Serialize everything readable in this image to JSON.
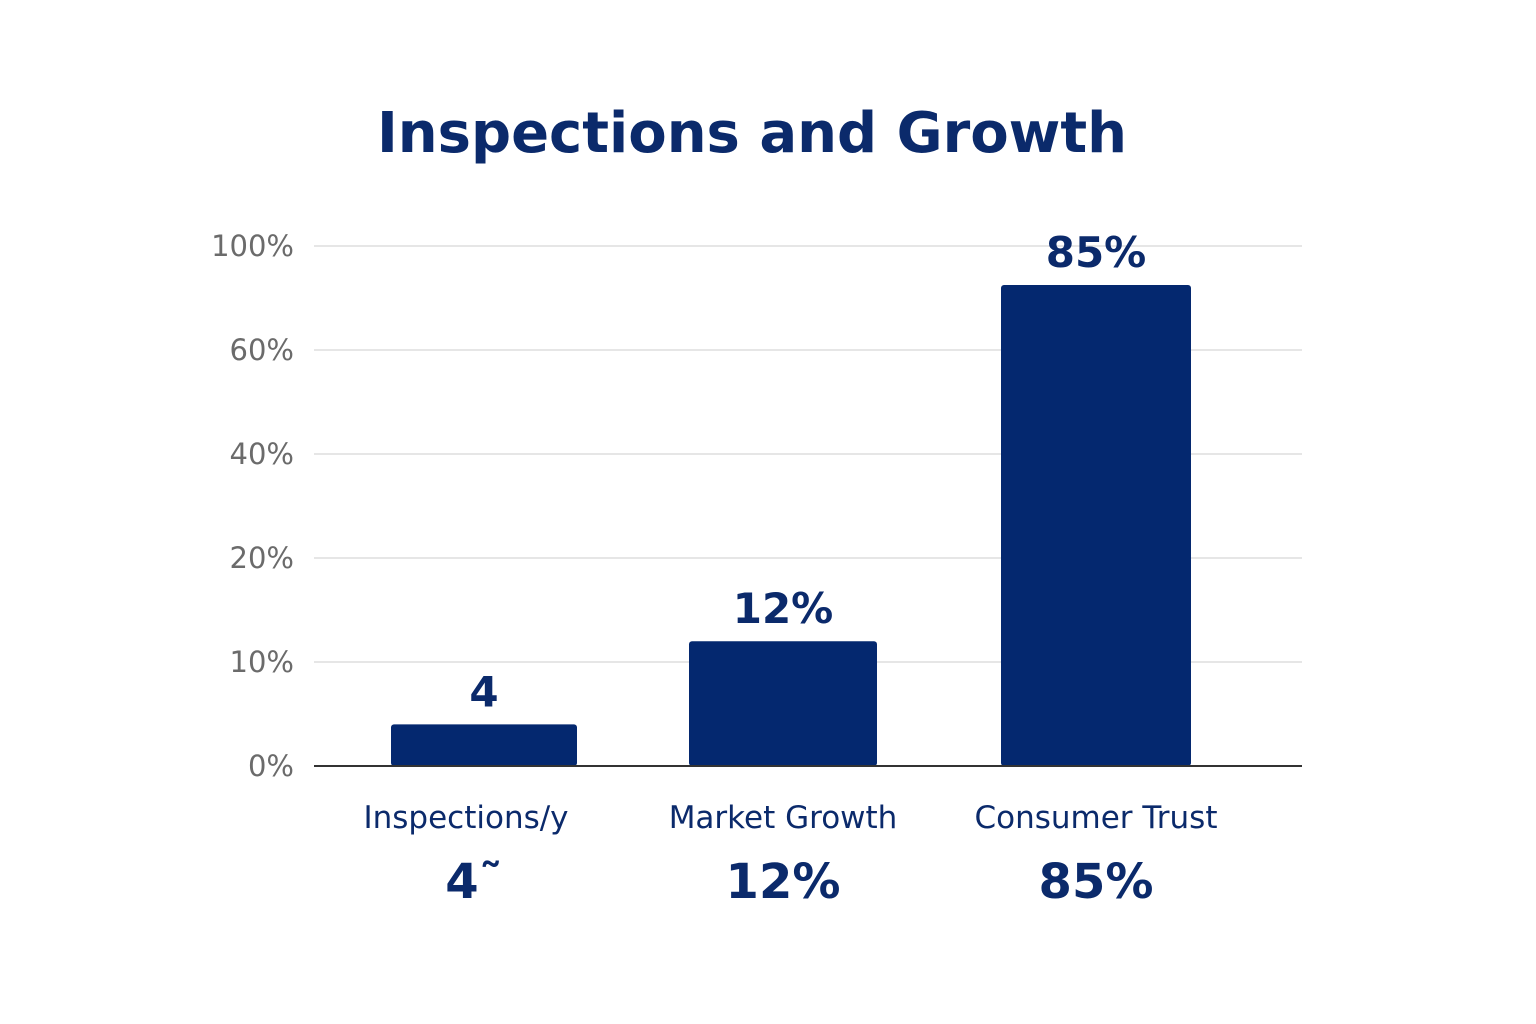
{
  "chart_data": {
    "type": "bar",
    "title": "Inspections and Growth",
    "xlabel": "",
    "ylabel": "",
    "y_ticks": [
      "0%",
      "10%",
      "20%",
      "40%",
      "60%",
      "100%"
    ],
    "ylim": [
      0,
      100
    ],
    "y_scale": "non-uniform (ticks evenly spaced: 0%, 10%, 20%, 40%, 60%, 100%)",
    "grid": true,
    "legend": "none",
    "categories": [
      "Inspections/y",
      "Market Growth",
      "Consumer Trust"
    ],
    "values": [
      4,
      12,
      85
    ],
    "bar_labels": [
      "4",
      "12%",
      "85%"
    ],
    "captions": [
      "4˜",
      "12%",
      "85%"
    ],
    "colors": {
      "bar": "#04286f",
      "text": "#0b2a6b",
      "tick": "#6b6b6b",
      "grid": "#dddddd",
      "axis": "#333333"
    }
  }
}
